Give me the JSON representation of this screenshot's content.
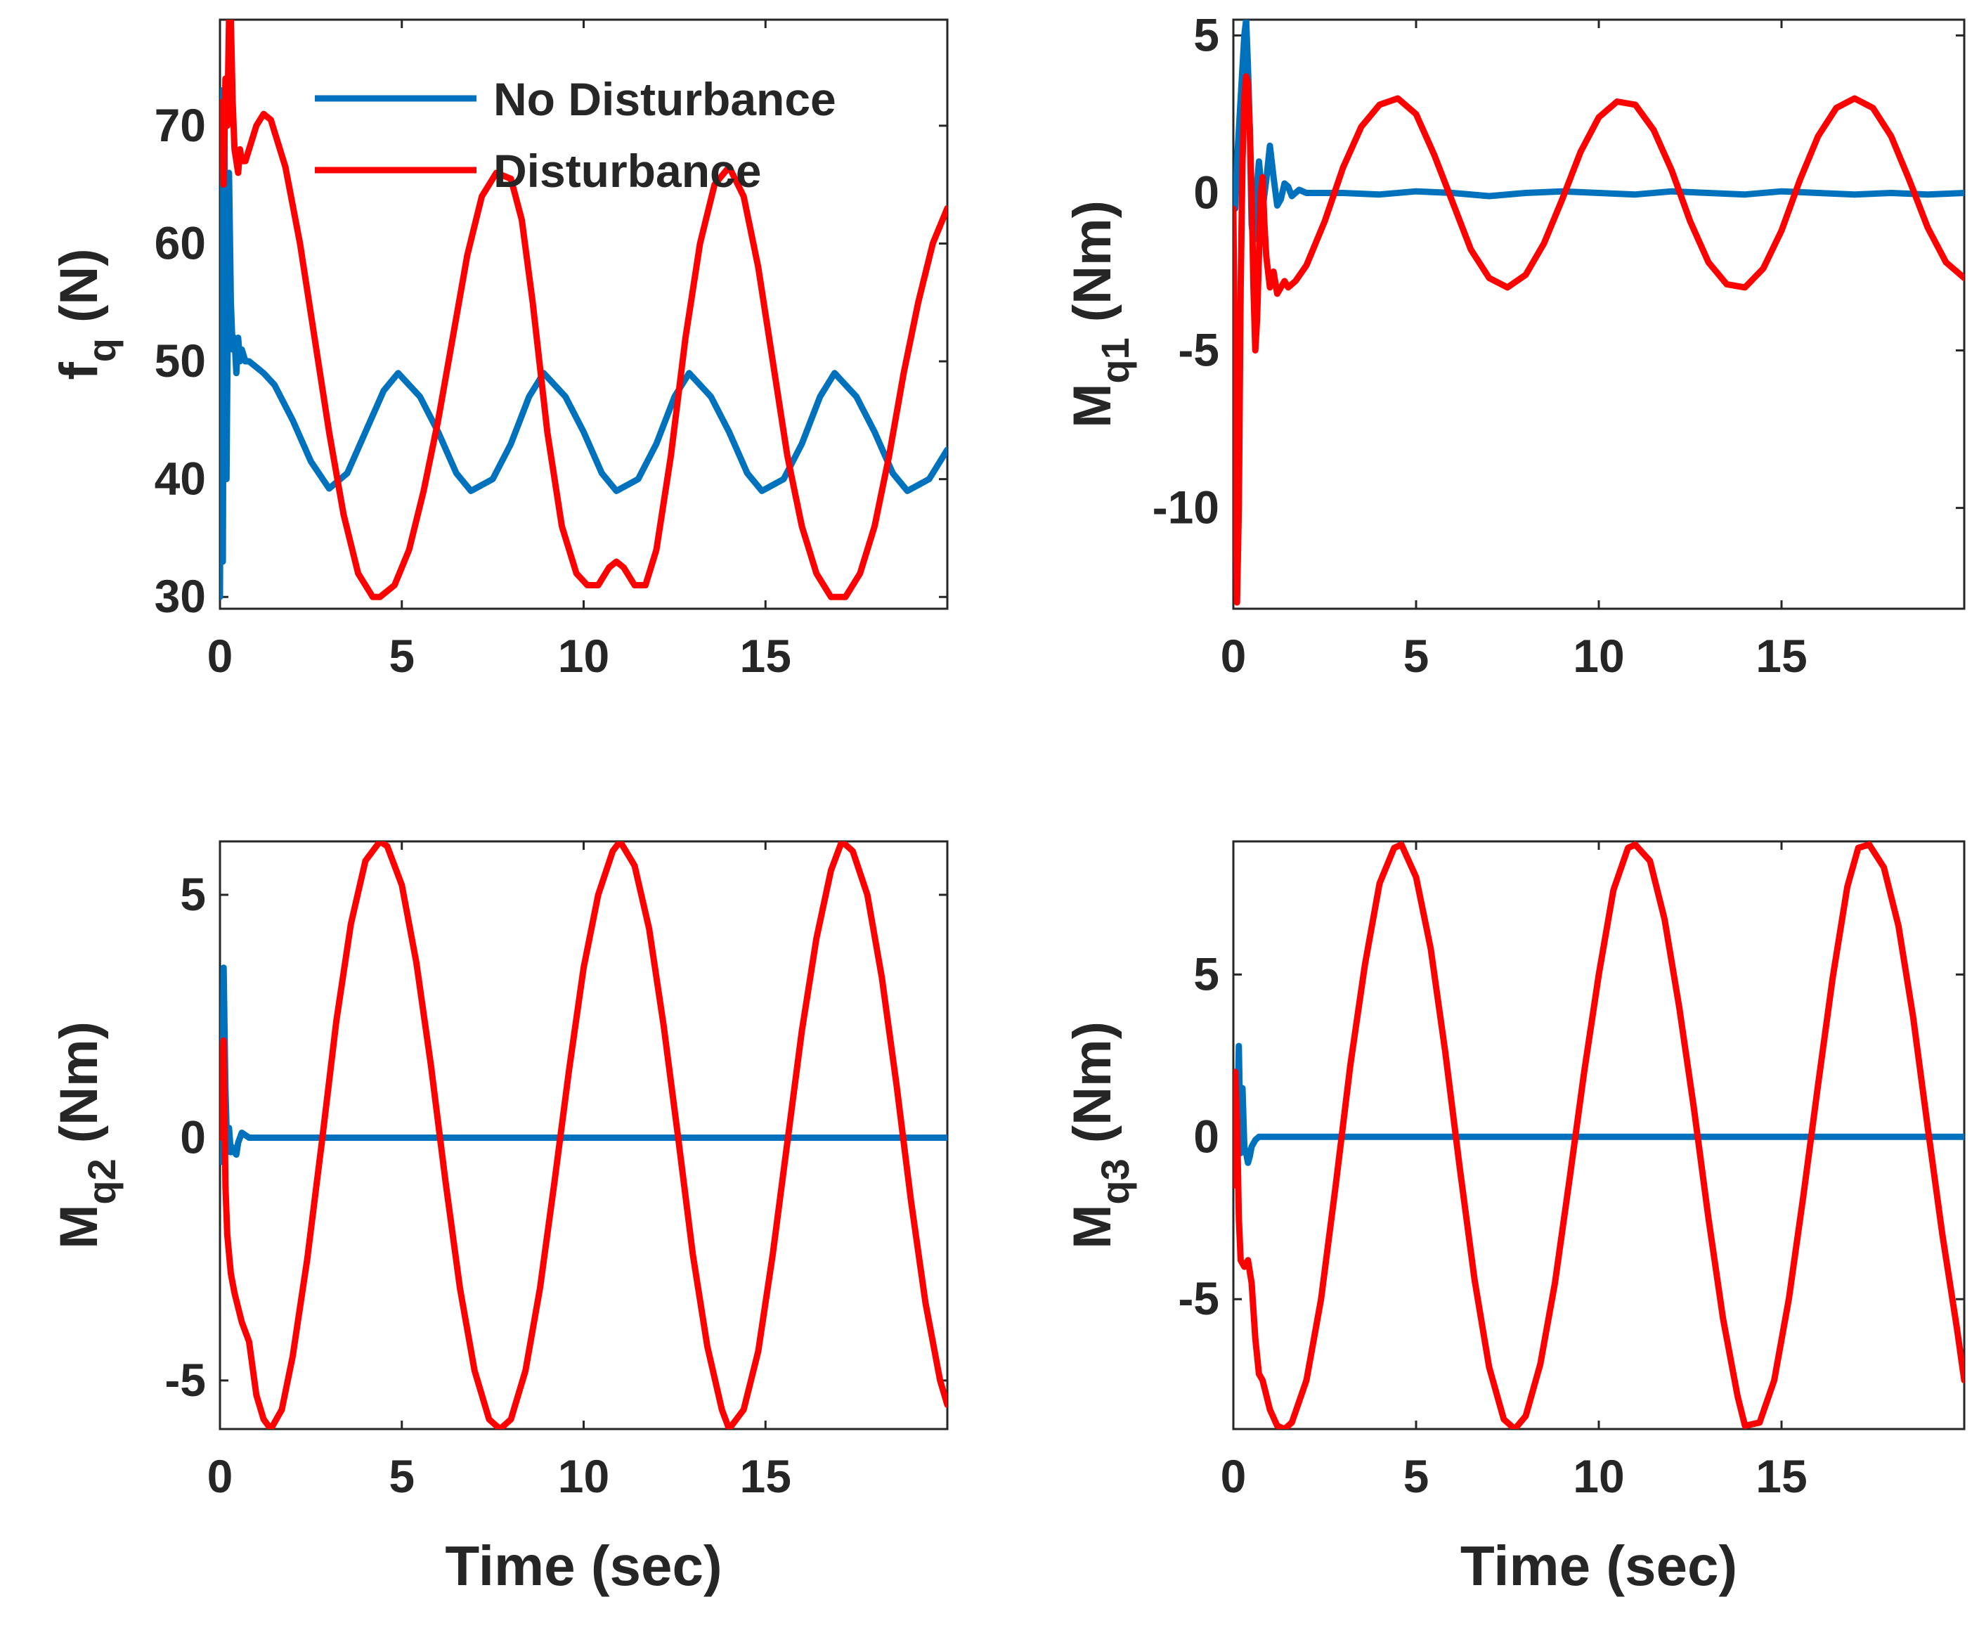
{
  "colors": {
    "no_disturbance": "#0072BD",
    "disturbance": "#FF0000",
    "axis": "#262626"
  },
  "legend": {
    "location": "top-right",
    "entries": [
      "No Disturbance",
      "Disturbance"
    ]
  },
  "chart_data": [
    {
      "type": "line",
      "panel": "top-left",
      "ylabel": "f",
      "ylabel_sub": "q",
      "ylabel_unit": "(N)",
      "xlabel": "",
      "xlim": [
        0,
        20
      ],
      "ylim": [
        29,
        79
      ],
      "xticks": [
        "0",
        "5",
        "10",
        "15"
      ],
      "xtick_values": [
        0,
        5,
        10,
        15
      ],
      "yticks": [
        "30",
        "40",
        "50",
        "60",
        "70"
      ],
      "ytick_values": [
        30,
        40,
        50,
        60,
        70
      ],
      "show_legend": true,
      "series": [
        {
          "name": "No Disturbance",
          "x": [
            0,
            0.05,
            0.08,
            0.12,
            0.18,
            0.25,
            0.3,
            0.35,
            0.4,
            0.45,
            0.5,
            0.55,
            0.6,
            0.7,
            0.8,
            1,
            1.2,
            1.5,
            2,
            2.5,
            3,
            3.5,
            4,
            4.5,
            4.9,
            5.5,
            6,
            6.5,
            6.9,
            7.5,
            8,
            8.5,
            8.9,
            9.5,
            10,
            10.5,
            10.9,
            11.5,
            12,
            12.5,
            12.9,
            13.5,
            14,
            14.5,
            14.9,
            15.5,
            16,
            16.5,
            16.9,
            17.5,
            18,
            18.5,
            18.9,
            19.5,
            20
          ],
          "values": [
            30,
            73,
            33,
            72,
            40,
            66,
            55,
            51,
            52,
            49,
            52,
            50,
            51,
            50,
            50,
            49.5,
            49,
            48,
            45,
            41.5,
            39.2,
            40.5,
            44,
            47.5,
            49,
            47,
            44,
            40.5,
            39,
            40,
            43,
            47,
            49,
            47,
            44,
            40.5,
            39,
            40,
            43,
            47,
            49,
            47,
            44,
            40.5,
            39,
            40,
            43,
            47,
            49,
            47,
            44,
            40.5,
            39,
            40,
            42.5
          ]
        },
        {
          "name": "Disturbance",
          "x": [
            0,
            0.05,
            0.1,
            0.15,
            0.2,
            0.25,
            0.3,
            0.35,
            0.4,
            0.45,
            0.5,
            0.55,
            0.6,
            0.7,
            0.8,
            0.9,
            1,
            1.2,
            1.4,
            1.8,
            2.2,
            2.6,
            3,
            3.4,
            3.8,
            4.2,
            4.4,
            4.8,
            5.2,
            5.6,
            6,
            6.4,
            6.8,
            7.2,
            7.6,
            8,
            8.3,
            8.6,
            9,
            9.4,
            9.8,
            10.1,
            10.4,
            10.7,
            10.9,
            11.1,
            11.4,
            11.7,
            12,
            12.4,
            12.8,
            13.2,
            13.6,
            14,
            14.4,
            14.8,
            15.2,
            15.6,
            16,
            16.4,
            16.8,
            17.2,
            17.6,
            18,
            18.4,
            18.8,
            19.2,
            19.6,
            20
          ],
          "values": [
            68,
            72,
            65,
            74,
            70,
            79,
            79,
            72,
            68,
            67,
            66,
            68,
            67,
            67,
            68,
            69,
            70,
            71,
            70.5,
            66.5,
            60,
            52,
            44,
            37,
            32,
            30,
            30,
            31,
            34,
            39,
            45,
            52,
            59,
            64,
            66,
            65.5,
            62,
            55,
            44,
            36,
            32,
            31,
            31,
            32.5,
            33,
            32.5,
            31,
            31,
            34,
            42,
            52,
            60,
            65,
            66.5,
            64,
            58,
            50,
            42,
            36,
            32,
            30,
            30,
            32,
            36,
            42,
            49,
            55,
            60,
            63
          ]
        }
      ]
    },
    {
      "type": "line",
      "panel": "top-right",
      "ylabel": "M",
      "ylabel_sub": "q1",
      "ylabel_unit": "(Nm)",
      "xlabel": "",
      "xlim": [
        0,
        20
      ],
      "ylim": [
        -13.2,
        5.5
      ],
      "xticks": [
        "0",
        "5",
        "10",
        "15"
      ],
      "xtick_values": [
        0,
        5,
        10,
        15
      ],
      "yticks": [
        "-10",
        "-5",
        "0",
        "5"
      ],
      "ytick_values": [
        -10,
        -5,
        0,
        5
      ],
      "show_legend": false,
      "series": [
        {
          "name": "No Disturbance",
          "x": [
            0,
            0.05,
            0.1,
            0.15,
            0.2,
            0.25,
            0.3,
            0.35,
            0.4,
            0.45,
            0.5,
            0.55,
            0.6,
            0.65,
            0.7,
            0.75,
            0.8,
            0.9,
            1,
            1.1,
            1.2,
            1.3,
            1.4,
            1.5,
            1.6,
            1.8,
            2,
            3,
            4,
            5,
            6,
            7,
            8,
            9,
            10,
            11,
            12,
            13,
            14,
            15,
            16,
            17,
            18,
            19,
            20
          ],
          "values": [
            0.5,
            -0.5,
            1,
            2,
            3,
            4,
            5,
            5.5,
            4,
            2,
            -1,
            -1.5,
            -0.5,
            0.3,
            1,
            0.4,
            -0.5,
            0.4,
            1.5,
            0.5,
            -0.4,
            -0.2,
            0.3,
            0.2,
            -0.1,
            0.1,
            0,
            0,
            -0.05,
            0.05,
            0,
            -0.1,
            0,
            0.05,
            0,
            -0.05,
            0.05,
            0,
            -0.05,
            0.05,
            0,
            -0.05,
            0,
            -0.05,
            0
          ]
        },
        {
          "name": "Disturbance",
          "x": [
            0,
            0.05,
            0.1,
            0.15,
            0.2,
            0.25,
            0.3,
            0.35,
            0.4,
            0.45,
            0.5,
            0.55,
            0.6,
            0.65,
            0.7,
            0.75,
            0.8,
            0.85,
            0.9,
            1,
            1.1,
            1.2,
            1.3,
            1.4,
            1.5,
            1.7,
            2,
            2.5,
            3,
            3.5,
            4,
            4.5,
            5,
            5.5,
            6,
            6.5,
            7,
            7.5,
            8,
            8.5,
            9,
            9.5,
            10,
            10.5,
            11,
            11.5,
            12,
            12.5,
            13,
            13.5,
            14,
            14.5,
            15,
            15.5,
            16,
            16.5,
            17,
            17.5,
            18,
            18.5,
            19,
            19.5,
            20
          ],
          "values": [
            -0.5,
            -7,
            -13,
            -10,
            -3,
            1,
            3,
            3.7,
            3.5,
            2,
            0,
            -3,
            -5,
            -4,
            -2,
            0,
            0.5,
            -1,
            -2,
            -3,
            -2.5,
            -3.2,
            -3,
            -2.8,
            -3,
            -2.8,
            -2.3,
            -0.9,
            0.8,
            2.1,
            2.8,
            3,
            2.5,
            1.2,
            -0.3,
            -1.8,
            -2.7,
            -3,
            -2.6,
            -1.6,
            -0.2,
            1.3,
            2.4,
            2.9,
            2.8,
            2,
            0.7,
            -0.9,
            -2.2,
            -2.9,
            -3,
            -2.4,
            -1.2,
            0.4,
            1.8,
            2.7,
            3,
            2.7,
            1.8,
            0.4,
            -1.1,
            -2.2,
            -2.7
          ]
        }
      ]
    },
    {
      "type": "line",
      "panel": "bottom-left",
      "ylabel": "M",
      "ylabel_sub": "q2",
      "ylabel_unit": "(Nm)",
      "xlabel": "Time (sec)",
      "xlim": [
        0,
        20
      ],
      "ylim": [
        -6,
        6.1
      ],
      "xticks": [
        "0",
        "5",
        "10",
        "15"
      ],
      "xtick_values": [
        0,
        5,
        10,
        15
      ],
      "yticks": [
        "-5",
        "0",
        "5"
      ],
      "ytick_values": [
        -5,
        0,
        5
      ],
      "show_legend": false,
      "series": [
        {
          "name": "No Disturbance",
          "x": [
            0,
            0.05,
            0.1,
            0.15,
            0.2,
            0.25,
            0.3,
            0.35,
            0.4,
            0.45,
            0.5,
            0.55,
            0.6,
            0.7,
            0.8,
            1,
            2,
            5,
            10,
            15,
            20
          ],
          "values": [
            1,
            -0.5,
            3.5,
            1,
            -0.3,
            0.2,
            -0.3,
            -0.2,
            -0.3,
            -0.35,
            -0.1,
            0,
            0.1,
            0.05,
            0,
            0,
            0,
            0,
            0,
            0,
            0
          ]
        },
        {
          "name": "Disturbance",
          "x": [
            0,
            0.05,
            0.1,
            0.15,
            0.2,
            0.3,
            0.4,
            0.5,
            0.6,
            0.8,
            1,
            1.2,
            1.4,
            1.7,
            2,
            2.4,
            2.8,
            3.2,
            3.6,
            4,
            4.4,
            4.6,
            5,
            5.4,
            5.8,
            6.2,
            6.6,
            7,
            7.4,
            7.7,
            8,
            8.4,
            8.8,
            9.2,
            9.6,
            10,
            10.4,
            10.8,
            11,
            11.4,
            11.8,
            12.2,
            12.6,
            13,
            13.4,
            13.8,
            14,
            14.4,
            14.8,
            15.2,
            15.6,
            16,
            16.4,
            16.8,
            17.1,
            17.4,
            17.8,
            18.2,
            18.6,
            19,
            19.4,
            19.8,
            20
          ],
          "values": [
            0,
            1.5,
            2,
            -1,
            -2,
            -2.8,
            -3.2,
            -3.5,
            -3.8,
            -4.2,
            -5.3,
            -5.8,
            -6,
            -5.6,
            -4.5,
            -2.5,
            -0.1,
            2.4,
            4.4,
            5.7,
            6.1,
            6,
            5.2,
            3.6,
            1.5,
            -0.9,
            -3.1,
            -4.8,
            -5.8,
            -6,
            -5.8,
            -4.8,
            -3.1,
            -0.9,
            1.4,
            3.5,
            5,
            5.9,
            6.1,
            5.6,
            4.3,
            2.3,
            0,
            -2.4,
            -4.3,
            -5.6,
            -6,
            -5.6,
            -4.4,
            -2.4,
            -0.1,
            2.2,
            4.1,
            5.5,
            6.1,
            5.9,
            5,
            3.3,
            1.1,
            -1.3,
            -3.4,
            -5,
            -5.5
          ]
        }
      ]
    },
    {
      "type": "line",
      "panel": "bottom-right",
      "ylabel": "M",
      "ylabel_sub": "q3",
      "ylabel_unit": "(Nm)",
      "xlabel": "Time (sec)",
      "xlim": [
        0,
        20
      ],
      "ylim": [
        -9,
        9.1
      ],
      "xticks": [
        "0",
        "5",
        "10",
        "15"
      ],
      "xtick_values": [
        0,
        5,
        10,
        15
      ],
      "yticks": [
        "-5",
        "0",
        "5"
      ],
      "ytick_values": [
        -5,
        0,
        5
      ],
      "show_legend": false,
      "series": [
        {
          "name": "No Disturbance",
          "x": [
            0,
            0.05,
            0.1,
            0.15,
            0.2,
            0.25,
            0.3,
            0.35,
            0.4,
            0.45,
            0.5,
            0.6,
            0.7,
            0.8,
            1,
            2,
            5,
            10,
            15,
            20
          ],
          "values": [
            0,
            1.5,
            0,
            2.8,
            -0.5,
            1.5,
            -0.3,
            -0.5,
            -0.8,
            -0.6,
            -0.3,
            -0.1,
            0,
            0,
            0,
            0,
            0,
            0,
            0,
            0
          ]
        },
        {
          "name": "Disturbance",
          "x": [
            0,
            0.05,
            0.1,
            0.15,
            0.2,
            0.3,
            0.4,
            0.5,
            0.6,
            0.7,
            0.8,
            1,
            1.2,
            1.4,
            1.6,
            2,
            2.4,
            2.8,
            3.2,
            3.6,
            4,
            4.4,
            4.6,
            5,
            5.4,
            5.8,
            6.2,
            6.6,
            7,
            7.4,
            7.7,
            8,
            8.4,
            8.8,
            9.2,
            9.6,
            10,
            10.4,
            10.8,
            11,
            11.4,
            11.8,
            12.2,
            12.6,
            13,
            13.4,
            13.8,
            14,
            14.4,
            14.8,
            15.2,
            15.6,
            16,
            16.4,
            16.8,
            17.1,
            17.4,
            17.8,
            18.2,
            18.6,
            19,
            19.4,
            19.8,
            20
          ],
          "values": [
            -1.5,
            2,
            0.5,
            -2.5,
            -3.8,
            -4,
            -3.8,
            -4.5,
            -6.2,
            -7.3,
            -7.5,
            -8.4,
            -8.9,
            -9,
            -8.8,
            -7.5,
            -5,
            -1.5,
            2.2,
            5.3,
            7.8,
            8.9,
            9,
            8,
            5.8,
            2.6,
            -1,
            -4.4,
            -7.1,
            -8.7,
            -9,
            -8.6,
            -7,
            -4.5,
            -1.3,
            2,
            5,
            7.6,
            8.9,
            9,
            8.5,
            6.7,
            4,
            0.9,
            -2.5,
            -5.6,
            -8,
            -8.9,
            -8.8,
            -7.5,
            -5,
            -1.8,
            1.6,
            4.9,
            7.7,
            8.9,
            9,
            8.3,
            6.5,
            3.7,
            0.3,
            -3,
            -5.9,
            -7.5
          ]
        }
      ]
    }
  ]
}
